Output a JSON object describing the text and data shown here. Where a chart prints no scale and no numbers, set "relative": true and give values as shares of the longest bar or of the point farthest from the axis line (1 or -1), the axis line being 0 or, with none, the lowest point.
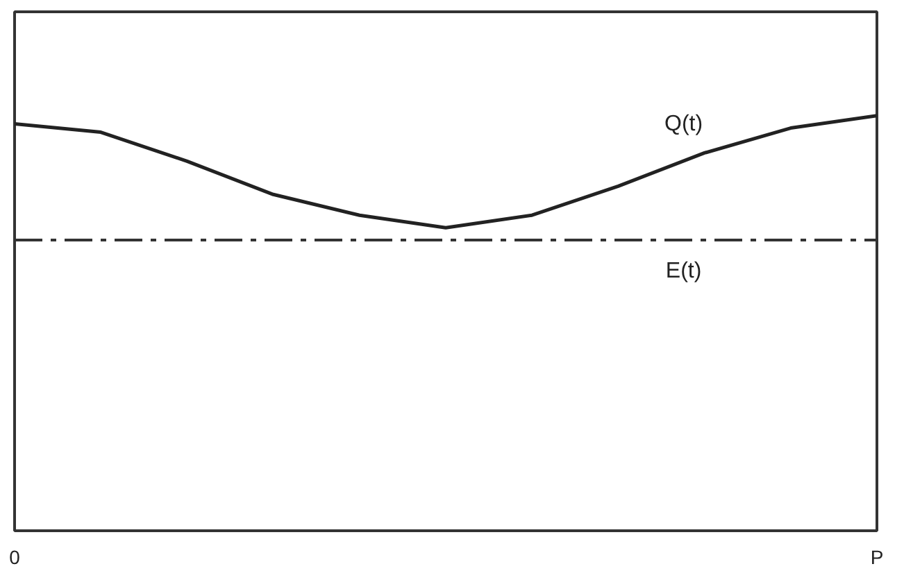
{
  "chart_data": {
    "type": "line",
    "relative": true,
    "categories": [
      "0",
      null,
      null,
      null,
      null,
      null,
      null,
      null,
      null,
      null,
      "P"
    ],
    "grid": false,
    "series": [
      {
        "name": "Q(t)",
        "color": "#222222",
        "line_style": "solid",
        "values": [
          0.98,
          0.96,
          0.89,
          0.81,
          0.76,
          0.73,
          0.76,
          0.83,
          0.91,
          0.97,
          1.0
        ]
      },
      {
        "name": "E(t)",
        "color": "#333333",
        "line_style": "dashed",
        "values": [
          0.7,
          0.7,
          0.7,
          0.7,
          0.7,
          0.7,
          0.7,
          0.7,
          0.7,
          0.7,
          0.7
        ]
      }
    ]
  }
}
